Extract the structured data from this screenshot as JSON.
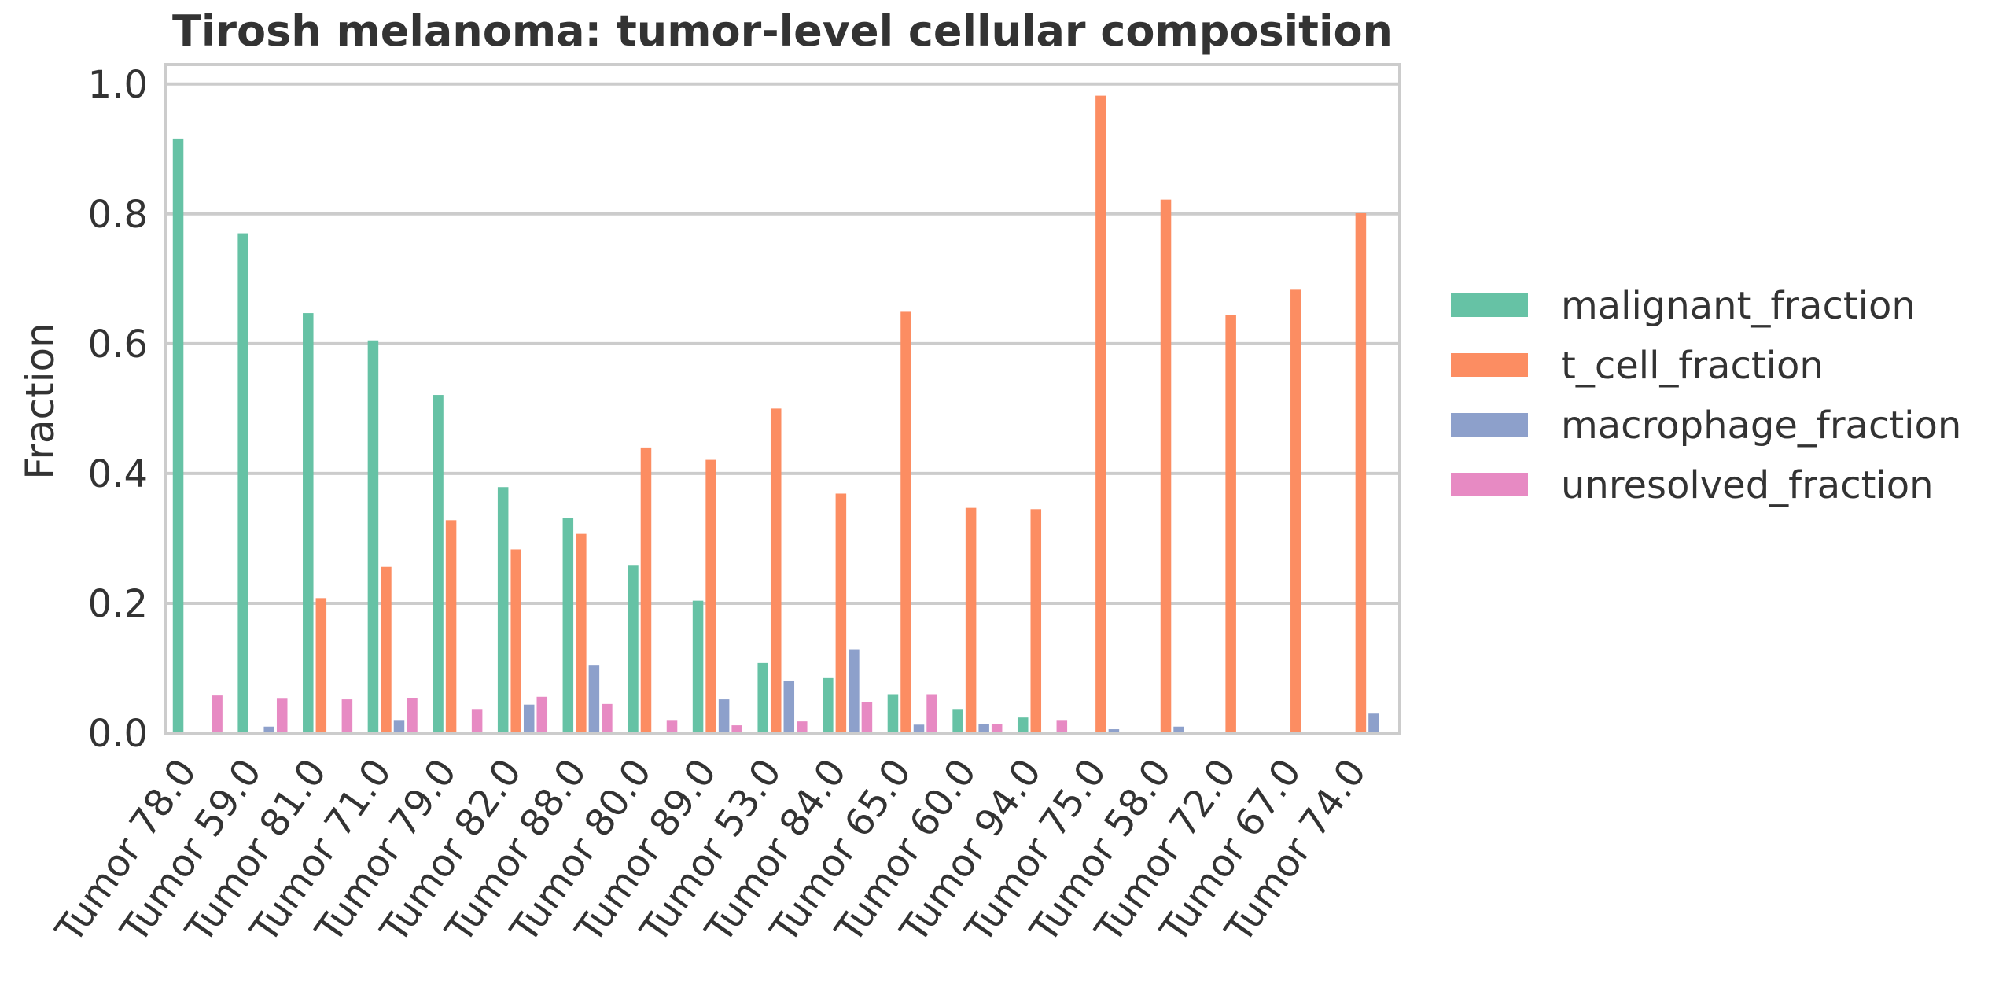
{
  "chart_data": {
    "type": "bar",
    "title": "Tirosh melanoma: tumor-level cellular composition",
    "xlabel": "",
    "ylabel": "Fraction",
    "ylim": [
      0,
      1.03
    ],
    "yticks": [
      0.0,
      0.2,
      0.4,
      0.6,
      0.8,
      1.0
    ],
    "ytick_labels": [
      "0.0",
      "0.2",
      "0.4",
      "0.6",
      "0.8",
      "1.0"
    ],
    "grid": true,
    "legend_position": "right",
    "categories": [
      "Tumor 78.0",
      "Tumor 59.0",
      "Tumor 81.0",
      "Tumor 71.0",
      "Tumor 79.0",
      "Tumor 82.0",
      "Tumor 88.0",
      "Tumor 80.0",
      "Tumor 89.0",
      "Tumor 53.0",
      "Tumor 84.0",
      "Tumor 65.0",
      "Tumor 60.0",
      "Tumor 94.0",
      "Tumor 75.0",
      "Tumor 58.0",
      "Tumor 72.0",
      "Tumor 67.0",
      "Tumor 74.0"
    ],
    "series": [
      {
        "name": "malignant_fraction",
        "color": "#66c2a5",
        "values": [
          0.915,
          0.77,
          0.647,
          0.605,
          0.521,
          0.379,
          0.331,
          0.259,
          0.204,
          0.108,
          0.085,
          0.06,
          0.036,
          0.024,
          0.0,
          0.0,
          0.0,
          0.0,
          0.0
        ]
      },
      {
        "name": "t_cell_fraction",
        "color": "#fc8d62",
        "values": [
          0.0,
          0.0,
          0.208,
          0.256,
          0.328,
          0.283,
          0.307,
          0.44,
          0.421,
          0.5,
          0.369,
          0.649,
          0.347,
          0.345,
          0.982,
          0.822,
          0.644,
          0.683,
          0.801
        ]
      },
      {
        "name": "macrophage_fraction",
        "color": "#8da0cb",
        "values": [
          0.0,
          0.01,
          0.0,
          0.019,
          0.0,
          0.044,
          0.104,
          0.0,
          0.052,
          0.08,
          0.129,
          0.013,
          0.014,
          0.0,
          0.006,
          0.01,
          0.0,
          0.0,
          0.03
        ]
      },
      {
        "name": "unresolved_fraction",
        "color": "#e78ac3",
        "values": [
          0.058,
          0.053,
          0.052,
          0.054,
          0.036,
          0.056,
          0.045,
          0.019,
          0.012,
          0.018,
          0.048,
          0.06,
          0.014,
          0.019,
          0.0,
          0.0,
          0.0,
          0.0,
          0.0
        ]
      }
    ]
  },
  "colors": {
    "text": "#333333",
    "grid": "#cccccc",
    "frame": "#cccccc",
    "background": "#ffffff"
  }
}
